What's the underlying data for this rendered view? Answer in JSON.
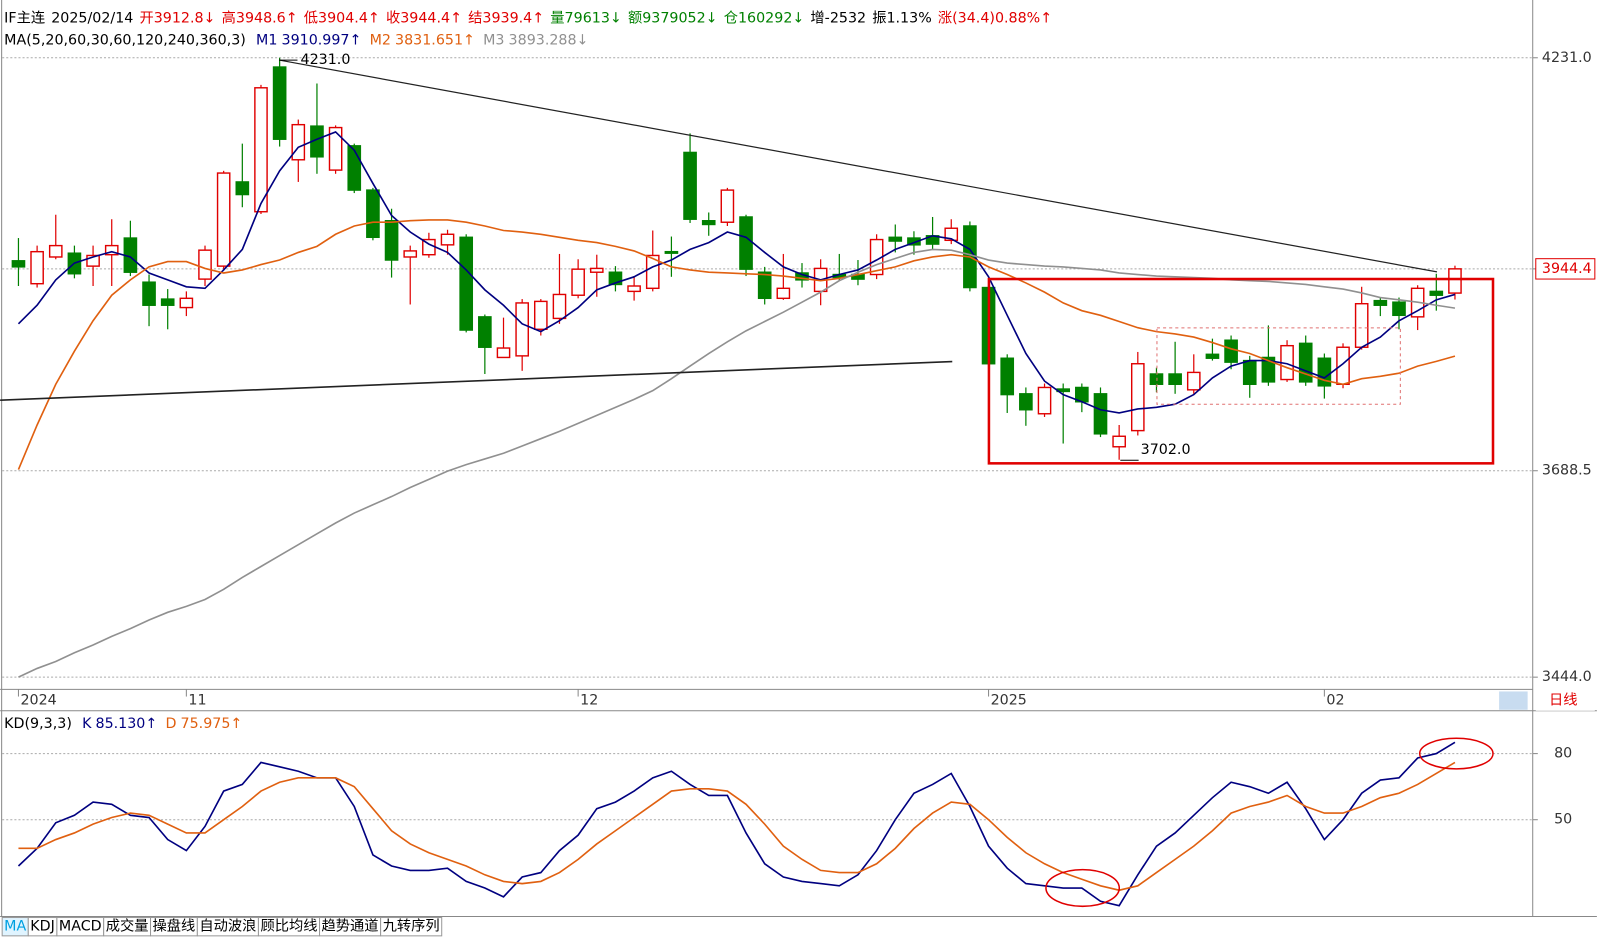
{
  "chart_data": [
    {
      "type": "candlestick",
      "log_scale": true,
      "header": [
        {
          "text": "IF主连",
          "color": "#000000"
        },
        {
          "text": "2025/02/14",
          "color": "#000000"
        },
        {
          "text": "开3912.8↓",
          "color": "#e00000"
        },
        {
          "text": "高3948.6↑",
          "color": "#e00000"
        },
        {
          "text": "低3904.4↑",
          "color": "#e00000"
        },
        {
          "text": "收3944.4↑",
          "color": "#e00000"
        },
        {
          "text": "结3939.4↑",
          "color": "#e00000"
        },
        {
          "text": "量79613↓",
          "color": "#008000"
        },
        {
          "text": "额9379052↓",
          "color": "#008000"
        },
        {
          "text": "仓160292↓",
          "color": "#008000"
        },
        {
          "text": "增-2532",
          "color": "#000000"
        },
        {
          "text": "振1.13%",
          "color": "#000000"
        },
        {
          "text": "涨(34.4)0.88%↑",
          "color": "#e00000"
        }
      ],
      "indicator": "MA(5,20,60,30,60,120,240,360,3)",
      "annotations": [
        "4231.0",
        "3702.0"
      ],
      "up_color": "#e00000",
      "down_color": "#008000",
      "categories": [
        "2024",
        null,
        null,
        null,
        null,
        null,
        null,
        null,
        null,
        "11",
        null,
        null,
        null,
        null,
        null,
        null,
        null,
        null,
        null,
        null,
        null,
        null,
        null,
        null,
        null,
        null,
        null,
        null,
        null,
        null,
        "12",
        null,
        null,
        null,
        null,
        null,
        null,
        null,
        null,
        null,
        null,
        null,
        null,
        null,
        null,
        null,
        null,
        null,
        null,
        null,
        null,
        null,
        "2025",
        null,
        null,
        null,
        null,
        null,
        null,
        null,
        null,
        null,
        null,
        null,
        null,
        null,
        null,
        null,
        null,
        null,
        "02",
        null,
        null,
        null,
        null,
        null,
        null,
        null
      ],
      "open": [
        3955,
        3925,
        3960,
        3965,
        3948,
        3963,
        3985,
        3927,
        3905,
        3894,
        3931,
        3948,
        4060,
        4020,
        4218,
        4090,
        4136,
        4076,
        4109,
        4049,
        4008,
        3960,
        3963,
        3976,
        3986,
        3882,
        3830,
        3832,
        3866,
        3880,
        3910,
        3940,
        3940,
        3915,
        3919,
        3967,
        4100,
        4008,
        4006,
        4013,
        3940,
        3906,
        3939,
        3915,
        3937,
        3937,
        3937,
        3986,
        3985,
        3988,
        3982,
        4001,
        3920,
        3829,
        3784,
        3759,
        3790,
        3792,
        3784,
        3718,
        3738,
        3809,
        3809,
        3789,
        3834,
        3852,
        3826,
        3830,
        3802,
        3848,
        3829,
        3796,
        3843,
        3903,
        3901,
        3882,
        3915,
        3912.8
      ],
      "high": [
        3985,
        3975,
        4016,
        3975,
        3975,
        4010,
        4008,
        3937,
        3918,
        3915,
        3975,
        4075,
        4112,
        4193,
        4231,
        4145,
        4195,
        4137,
        4112,
        4052,
        4024,
        3975,
        3992,
        3996,
        3990,
        3885,
        3881,
        3905,
        3905,
        3964,
        3957,
        3963,
        3948,
        3935,
        3995,
        3987,
        4126,
        4019,
        4052,
        4016,
        3947,
        3964,
        3952,
        3957,
        3964,
        3956,
        3990,
        4003,
        3994,
        4013,
        4010,
        4007,
        3922,
        3834,
        3792,
        3797,
        3797,
        3797,
        3792,
        3745,
        3837,
        3817,
        3850,
        3834,
        3854,
        3858,
        3832,
        3871,
        3852,
        3858,
        3835,
        3848,
        3921,
        3907,
        3907,
        3923,
        3938,
        3948.6
      ],
      "low": [
        3922,
        3920,
        3957,
        3932,
        3922,
        3922,
        3935,
        3870,
        3866,
        3883,
        3922,
        3944,
        4026,
        4017,
        4108,
        4060,
        4071,
        4071,
        4045,
        3982,
        3933,
        3898,
        3959,
        3963,
        3862,
        3809,
        3830,
        3813,
        3858,
        3873,
        3906,
        3908,
        3915,
        3903,
        3915,
        3934,
        4005,
        3988,
        4001,
        3935,
        3898,
        3904,
        3920,
        3897,
        3929,
        3923,
        3931,
        3966,
        3963,
        3970,
        3977,
        3915,
        3820,
        3760,
        3744,
        3755,
        3722,
        3761,
        3730,
        3702,
        3732,
        3786,
        3784,
        3784,
        3826,
        3815,
        3779,
        3794,
        3799,
        3794,
        3778,
        3791,
        3840,
        3883,
        3866,
        3865,
        3890,
        3904.4
      ],
      "close": [
        3947,
        3967,
        3975,
        3938,
        3962,
        3975,
        3940,
        3897,
        3897,
        3906,
        3969,
        4072,
        4043,
        4189,
        4118,
        4138,
        4094,
        4134,
        4049,
        3986,
        3956,
        3968,
        3983,
        3990,
        3865,
        3843,
        3842,
        3900,
        3902,
        3911,
        3944,
        3945,
        3924,
        3922,
        3962,
        3965,
        4010,
        4003,
        4049,
        3944,
        3906,
        3919,
        3930,
        3945,
        3933,
        3931,
        3983,
        3981,
        3976,
        3977,
        3998,
        3920,
        3822,
        3783,
        3764,
        3792,
        3787,
        3774,
        3734,
        3731,
        3822,
        3796,
        3796,
        3811,
        3829,
        3824,
        3796,
        3799,
        3845,
        3799,
        3794,
        3843,
        3899,
        3897,
        3884,
        3919,
        3910,
        3944.4
      ],
      "series": [
        {
          "name": "M1",
          "legend_label": "3910.997↑",
          "color": "#000080",
          "values": [
            3873,
            3897,
            3930,
            3952,
            3960,
            3967,
            3960,
            3939,
            3930,
            3921,
            3919,
            3943,
            3970,
            4031,
            4075,
            4107,
            4118,
            4128,
            4103,
            4058,
            4015,
            3993,
            3977,
            3966,
            3943,
            3917,
            3897,
            3873,
            3863,
            3877,
            3894,
            3917,
            3926,
            3934,
            3947,
            3956,
            3970,
            3979,
            3993,
            3986,
            3966,
            3947,
            3937,
            3930,
            3937,
            3943,
            3956,
            3970,
            3979,
            3988,
            3984,
            3970,
            3934,
            3884,
            3835,
            3800,
            3783,
            3774,
            3764,
            3760,
            3765,
            3767,
            3771,
            3783,
            3804,
            3819,
            3826,
            3826,
            3822,
            3813,
            3804,
            3822,
            3843,
            3856,
            3877,
            3890,
            3904,
            3910.997
          ]
        },
        {
          "name": "M2",
          "legend_label": "3831.651↑",
          "color": "#e06010",
          "values": [
            3690,
            3745,
            3796,
            3838,
            3877,
            3910,
            3930,
            3947,
            3954,
            3954,
            3945,
            3939,
            3943,
            3950,
            3956,
            3966,
            3974,
            3990,
            4001,
            4006,
            4006,
            4008,
            4009,
            4009,
            4006,
            4001,
            3995,
            3993,
            3990,
            3986,
            3982,
            3979,
            3974,
            3968,
            3958,
            3947,
            3943,
            3940,
            3939,
            3938,
            3937,
            3935,
            3932,
            3929,
            3932,
            3937,
            3942,
            3947,
            3955,
            3960,
            3963,
            3960,
            3947,
            3937,
            3926,
            3914,
            3900,
            3890,
            3884,
            3876,
            3868,
            3863,
            3860,
            3856,
            3849,
            3841,
            3835,
            3826,
            3817,
            3809,
            3801,
            3796,
            3803,
            3806,
            3810,
            3819,
            3825,
            3831.651
          ]
        },
        {
          "name": "M3",
          "legend_label": "3893.288↓",
          "color": "#909090",
          "values": [
            3444,
            3454,
            3462,
            3472,
            3481,
            3491,
            3500,
            3510,
            3519,
            3526,
            3534,
            3546,
            3560,
            3573,
            3586,
            3599,
            3612,
            3625,
            3637,
            3647,
            3657,
            3668,
            3678,
            3688,
            3696,
            3703,
            3710,
            3719,
            3728,
            3737,
            3747,
            3757,
            3767,
            3777,
            3788,
            3803,
            3819,
            3835,
            3850,
            3864,
            3876,
            3888,
            3901,
            3914,
            3929,
            3940,
            3950,
            3958,
            3966,
            3970,
            3969,
            3963,
            3956,
            3952,
            3950,
            3948,
            3947,
            3945,
            3943,
            3939,
            3937,
            3935,
            3934,
            3933,
            3932,
            3930,
            3929,
            3928,
            3926,
            3924,
            3921,
            3918,
            3913,
            3907,
            3904,
            3901,
            3897,
            3893.288
          ]
        }
      ],
      "ylim": [
        3430,
        4313
      ],
      "yticks": [
        {
          "value": 4231,
          "label": "4231.0"
        },
        {
          "value": 3944.4,
          "label": "3944.4",
          "color": "#e00000"
        },
        {
          "value": 3688.5,
          "label": "3688.5"
        },
        {
          "value": 3444,
          "label": "3444.0"
        }
      ],
      "grid": true,
      "period": "日线"
    },
    {
      "type": "line",
      "title": "KD(9,3,3)",
      "series": [
        {
          "name": "K",
          "legend_label": "85.130↑",
          "color": "#000080",
          "values": [
            29,
            37,
            48.6,
            52,
            58,
            57,
            52,
            51,
            41,
            36,
            47,
            63,
            66,
            76,
            74,
            72,
            69,
            69,
            56,
            34,
            29,
            27,
            27,
            28,
            22,
            19,
            15,
            24,
            26,
            36,
            43,
            55,
            58,
            63,
            69,
            72,
            66,
            61,
            61,
            44,
            30,
            24,
            22,
            21,
            20,
            25,
            36,
            50,
            62,
            66,
            71,
            56,
            38,
            28,
            21,
            20,
            19,
            19,
            13,
            11,
            25,
            38,
            44,
            52,
            60,
            67,
            65,
            62,
            67,
            55,
            41,
            50,
            62,
            68,
            69,
            78,
            80,
            85.13
          ]
        },
        {
          "name": "D",
          "legend_label": "75.975↑",
          "color": "#e06010",
          "values": [
            37,
            37,
            41,
            44,
            48,
            51,
            53,
            52,
            48,
            44,
            44,
            50,
            56,
            63,
            67,
            69,
            69,
            69,
            65,
            55,
            45,
            39,
            35,
            32,
            29,
            25,
            22,
            21,
            22,
            26,
            32,
            39,
            45,
            51,
            57,
            63,
            64,
            64,
            63,
            57,
            48,
            38,
            32,
            27,
            26,
            26,
            30,
            37,
            46,
            53,
            58,
            57,
            50,
            42,
            35,
            30,
            26,
            23,
            20,
            18,
            20,
            26,
            32,
            38,
            45,
            53,
            56,
            58,
            61,
            56,
            53,
            53,
            56,
            60,
            62,
            66,
            71,
            75.975
          ]
        }
      ],
      "ylim": [
        7,
        98.5
      ],
      "yticks": [
        80,
        50
      ],
      "grid": true,
      "tabs": [
        "MA",
        "KDJ",
        "MACD",
        "成交量",
        "操盘线",
        "自动波浪",
        "顾比均线",
        "趋势通道",
        "九转序列"
      ],
      "active_tab": 0
    }
  ]
}
